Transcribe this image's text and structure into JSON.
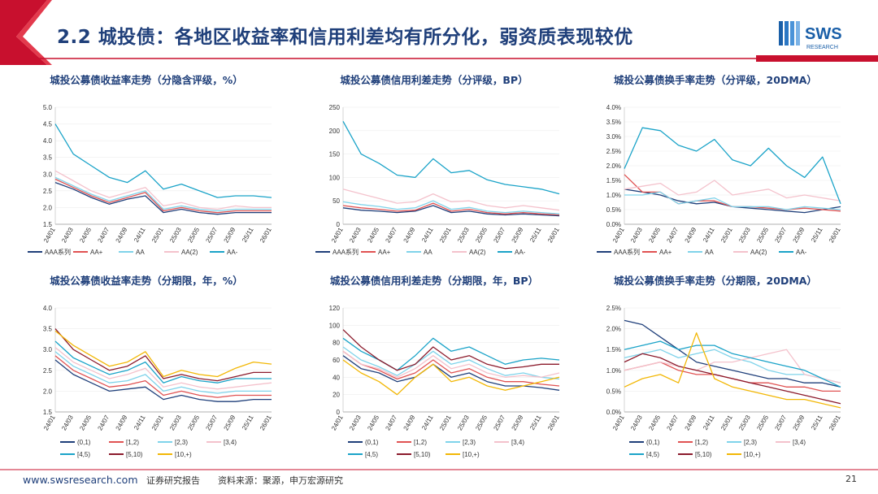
{
  "page": {
    "title": "2.2 城投债：各地区收益率和信用利差均有所分化，弱资质表现较优",
    "logo_text": "SWS",
    "logo_sub": "RESEARCH",
    "footer_url": "www.swsresearch.com",
    "footer_tag": "证券研究报告",
    "footer_source": "资料来源：聚源，申万宏源研究",
    "page_number": "21",
    "colors": {
      "brand": "#1f3f7a",
      "accent_red": "#c8102e",
      "logo_blue": "#1a5fa8"
    }
  },
  "chart_data": [
    {
      "type": "line",
      "title": "城投公募债收益率走势（分隐含评级，%）",
      "categories": [
        "24/01",
        "24/03",
        "24/05",
        "24/07",
        "24/09",
        "24/11",
        "25/01",
        "25/03",
        "25/05",
        "25/07",
        "25/09",
        "25/11",
        "26/01"
      ],
      "ylim": [
        1.5,
        5.0
      ],
      "yticks": [
        "1.5",
        "2.0",
        "2.5",
        "3.0",
        "3.5",
        "4.0",
        "4.5",
        "5.0"
      ],
      "series": [
        {
          "name": "AAA系列",
          "color": "#1f3f7a",
          "values": [
            2.75,
            2.55,
            2.3,
            2.1,
            2.25,
            2.35,
            1.85,
            1.95,
            1.85,
            1.8,
            1.85,
            1.85,
            1.85
          ]
        },
        {
          "name": "AA+",
          "color": "#e05252",
          "values": [
            2.85,
            2.6,
            2.35,
            2.15,
            2.3,
            2.45,
            1.9,
            2.0,
            1.9,
            1.85,
            1.9,
            1.9,
            1.9
          ]
        },
        {
          "name": "AA",
          "color": "#7fd3ea",
          "values": [
            2.9,
            2.65,
            2.4,
            2.2,
            2.35,
            2.5,
            1.95,
            2.05,
            1.95,
            1.9,
            1.95,
            1.95,
            1.95
          ]
        },
        {
          "name": "AA(2)",
          "color": "#f4c2cc",
          "values": [
            3.1,
            2.8,
            2.5,
            2.3,
            2.45,
            2.6,
            2.05,
            2.15,
            2.0,
            1.95,
            2.05,
            2.0,
            2.0
          ]
        },
        {
          "name": "AA-",
          "color": "#1aa3c8",
          "values": [
            4.5,
            3.6,
            3.25,
            2.9,
            2.75,
            3.1,
            2.55,
            2.7,
            2.5,
            2.3,
            2.35,
            2.35,
            2.3
          ]
        }
      ]
    },
    {
      "type": "line",
      "title": "城投公募债信用利差走势（分评级，BP）",
      "categories": [
        "24/01",
        "24/03",
        "24/05",
        "24/07",
        "24/09",
        "24/11",
        "25/01",
        "25/03",
        "25/05",
        "25/07",
        "25/09",
        "25/11",
        "26/01"
      ],
      "ylim": [
        0,
        250
      ],
      "yticks": [
        "0",
        "50",
        "100",
        "150",
        "200",
        "250"
      ],
      "series": [
        {
          "name": "AAA系列",
          "color": "#1f3f7a",
          "values": [
            35,
            30,
            28,
            25,
            28,
            40,
            25,
            28,
            22,
            20,
            22,
            20,
            18
          ]
        },
        {
          "name": "AA+",
          "color": "#e05252",
          "values": [
            40,
            35,
            32,
            28,
            30,
            45,
            28,
            32,
            25,
            22,
            25,
            22,
            20
          ]
        },
        {
          "name": "AA",
          "color": "#7fd3ea",
          "values": [
            48,
            42,
            38,
            32,
            35,
            50,
            32,
            36,
            28,
            25,
            28,
            25,
            22
          ]
        },
        {
          "name": "AA(2)",
          "color": "#f4c2cc",
          "values": [
            75,
            65,
            55,
            45,
            48,
            65,
            48,
            50,
            40,
            35,
            40,
            35,
            30
          ]
        },
        {
          "name": "AA-",
          "color": "#1aa3c8",
          "values": [
            220,
            150,
            130,
            105,
            100,
            140,
            110,
            115,
            95,
            85,
            80,
            75,
            65
          ]
        }
      ]
    },
    {
      "type": "line",
      "title": "城投公募债换手率走势（分评级，20DMA）",
      "categories": [
        "24/01",
        "24/03",
        "24/05",
        "24/07",
        "24/09",
        "24/11",
        "25/01",
        "25/03",
        "25/05",
        "25/07",
        "25/09",
        "25/11",
        "26/01"
      ],
      "ylim": [
        0,
        4
      ],
      "yticks": [
        "0.0%",
        "0.5%",
        "1.0%",
        "1.5%",
        "2.0%",
        "2.5%",
        "3.0%",
        "3.5%",
        "4.0%"
      ],
      "series": [
        {
          "name": "AAA系列",
          "color": "#1f3f7a",
          "values": [
            1.2,
            1.1,
            1.0,
            0.8,
            0.7,
            0.75,
            0.6,
            0.55,
            0.5,
            0.45,
            0.4,
            0.5,
            0.6
          ]
        },
        {
          "name": "AA+",
          "color": "#e05252",
          "values": [
            1.7,
            1.1,
            1.1,
            0.7,
            0.8,
            0.8,
            0.6,
            0.6,
            0.55,
            0.5,
            0.55,
            0.5,
            0.45
          ]
        },
        {
          "name": "AA",
          "color": "#7fd3ea",
          "values": [
            1.0,
            1.0,
            1.1,
            0.7,
            0.8,
            0.9,
            0.6,
            0.6,
            0.6,
            0.5,
            0.6,
            0.55,
            0.5
          ]
        },
        {
          "name": "AA(2)",
          "color": "#f4c2cc",
          "values": [
            1.2,
            1.3,
            1.4,
            1.0,
            1.1,
            1.5,
            1.0,
            1.1,
            1.2,
            0.9,
            1.0,
            0.9,
            0.8
          ]
        },
        {
          "name": "AA-",
          "color": "#1aa3c8",
          "values": [
            1.9,
            3.3,
            3.2,
            2.7,
            2.5,
            2.9,
            2.2,
            2.0,
            2.6,
            2.0,
            1.6,
            2.3,
            0.7
          ]
        }
      ]
    },
    {
      "type": "line",
      "title": "城投公募债收益率走势（分期限，年，%）",
      "categories": [
        "24/01",
        "24/03",
        "24/05",
        "24/07",
        "24/09",
        "24/11",
        "25/01",
        "25/03",
        "25/05",
        "25/07",
        "25/09",
        "25/11",
        "26/01"
      ],
      "ylim": [
        1.5,
        4.0
      ],
      "yticks": [
        "1.5",
        "2.0",
        "2.5",
        "3.0",
        "3.5",
        "4.0"
      ],
      "series": [
        {
          "name": "(0,1)",
          "color": "#1f3f7a",
          "values": [
            2.75,
            2.4,
            2.2,
            2.0,
            2.05,
            2.1,
            1.8,
            1.9,
            1.8,
            1.75,
            1.75,
            1.8,
            1.8
          ]
        },
        {
          "name": "[1,2)",
          "color": "#e05252",
          "values": [
            2.85,
            2.5,
            2.3,
            2.1,
            2.15,
            2.25,
            1.9,
            2.0,
            1.9,
            1.85,
            1.9,
            1.9,
            1.9
          ]
        },
        {
          "name": "[2,3)",
          "color": "#7fd3ea",
          "values": [
            2.95,
            2.6,
            2.4,
            2.2,
            2.25,
            2.4,
            2.0,
            2.1,
            2.0,
            1.95,
            2.0,
            2.0,
            2.0
          ]
        },
        {
          "name": "[3,4)",
          "color": "#f4c2cc",
          "values": [
            3.05,
            2.7,
            2.5,
            2.3,
            2.4,
            2.55,
            2.1,
            2.2,
            2.1,
            2.05,
            2.1,
            2.15,
            2.2
          ]
        },
        {
          "name": "[4,5)",
          "color": "#1aa3c8",
          "values": [
            3.2,
            2.8,
            2.6,
            2.4,
            2.5,
            2.7,
            2.2,
            2.35,
            2.25,
            2.2,
            2.3,
            2.3,
            2.3
          ]
        },
        {
          "name": "[5,10)",
          "color": "#8b1a2b",
          "values": [
            3.5,
            3.0,
            2.75,
            2.5,
            2.6,
            2.85,
            2.3,
            2.4,
            2.3,
            2.25,
            2.35,
            2.45,
            2.45
          ]
        },
        {
          "name": "[10,+)",
          "color": "#f2b705",
          "values": [
            3.45,
            3.1,
            2.85,
            2.6,
            2.7,
            2.95,
            2.35,
            2.5,
            2.4,
            2.35,
            2.55,
            2.7,
            2.65
          ]
        }
      ]
    },
    {
      "type": "line",
      "title": "城投公募债信用利差走势（分期限，年，BP）",
      "categories": [
        "24/01",
        "24/03",
        "24/05",
        "24/07",
        "24/09",
        "24/11",
        "25/01",
        "25/03",
        "25/05",
        "25/07",
        "25/09",
        "25/11",
        "26/01"
      ],
      "ylim": [
        0,
        120
      ],
      "yticks": [
        "0",
        "20",
        "40",
        "60",
        "80",
        "100",
        "120"
      ],
      "series": [
        {
          "name": "(0,1)",
          "color": "#1f3f7a",
          "values": [
            65,
            50,
            45,
            35,
            40,
            55,
            40,
            45,
            35,
            30,
            30,
            28,
            25
          ]
        },
        {
          "name": "[1,2)",
          "color": "#e05252",
          "values": [
            70,
            55,
            48,
            38,
            45,
            60,
            45,
            50,
            40,
            35,
            35,
            32,
            30
          ]
        },
        {
          "name": "[2,3)",
          "color": "#7fd3ea",
          "values": [
            75,
            60,
            52,
            42,
            55,
            70,
            55,
            60,
            50,
            42,
            45,
            40,
            38
          ]
        },
        {
          "name": "[3,4)",
          "color": "#f4c2cc",
          "values": [
            70,
            55,
            50,
            40,
            50,
            65,
            50,
            55,
            45,
            40,
            42,
            40,
            45
          ]
        },
        {
          "name": "[4,5)",
          "color": "#1aa3c8",
          "values": [
            85,
            70,
            60,
            48,
            65,
            85,
            70,
            75,
            65,
            55,
            60,
            62,
            60
          ]
        },
        {
          "name": "[5,10)",
          "color": "#8b1a2b",
          "values": [
            95,
            75,
            60,
            48,
            55,
            75,
            60,
            65,
            55,
            50,
            52,
            55,
            55
          ]
        },
        {
          "name": "[10,+)",
          "color": "#f2b705",
          "values": [
            60,
            45,
            35,
            20,
            40,
            55,
            35,
            40,
            30,
            25,
            30,
            35,
            40
          ]
        }
      ]
    },
    {
      "type": "line",
      "title": "城投公募债换手率走势（分期限，20DMA）",
      "categories": [
        "24/01",
        "24/03",
        "24/05",
        "24/07",
        "24/09",
        "24/11",
        "25/01",
        "25/03",
        "25/05",
        "25/07",
        "25/09",
        "25/11",
        "26/01"
      ],
      "ylim": [
        0,
        2.5
      ],
      "yticks": [
        "0.0%",
        "0.5%",
        "1.0%",
        "1.5%",
        "2.0%",
        "2.5%"
      ],
      "series": [
        {
          "name": "(0,1)",
          "color": "#1f3f7a",
          "values": [
            2.2,
            2.1,
            1.8,
            1.5,
            1.2,
            1.1,
            1.0,
            0.9,
            0.8,
            0.8,
            0.7,
            0.7,
            0.6
          ]
        },
        {
          "name": "[1,2)",
          "color": "#e05252",
          "values": [
            1.0,
            1.1,
            1.2,
            1.0,
            0.9,
            0.9,
            0.8,
            0.7,
            0.7,
            0.6,
            0.6,
            0.5,
            0.5
          ]
        },
        {
          "name": "[2,3)",
          "color": "#7fd3ea",
          "values": [
            1.3,
            1.4,
            1.5,
            1.3,
            1.4,
            1.5,
            1.3,
            1.2,
            1.0,
            0.9,
            0.9,
            0.8,
            0.7
          ]
        },
        {
          "name": "[3,4)",
          "color": "#f4c2cc",
          "values": [
            1.0,
            1.1,
            1.2,
            1.1,
            1.0,
            1.2,
            1.2,
            1.3,
            1.4,
            1.5,
            0.9,
            0.8,
            0.7
          ]
        },
        {
          "name": "[4,5)",
          "color": "#1aa3c8",
          "values": [
            1.5,
            1.6,
            1.7,
            1.5,
            1.6,
            1.6,
            1.4,
            1.3,
            1.2,
            1.1,
            1.0,
            0.8,
            0.6
          ]
        },
        {
          "name": "[5,10)",
          "color": "#8b1a2b",
          "values": [
            1.2,
            1.4,
            1.3,
            1.1,
            1.0,
            0.9,
            0.8,
            0.7,
            0.6,
            0.5,
            0.4,
            0.3,
            0.2
          ]
        },
        {
          "name": "[10,+)",
          "color": "#f2b705",
          "values": [
            0.6,
            0.8,
            0.9,
            0.7,
            1.9,
            0.8,
            0.6,
            0.5,
            0.4,
            0.3,
            0.3,
            0.2,
            0.1
          ]
        }
      ]
    }
  ]
}
